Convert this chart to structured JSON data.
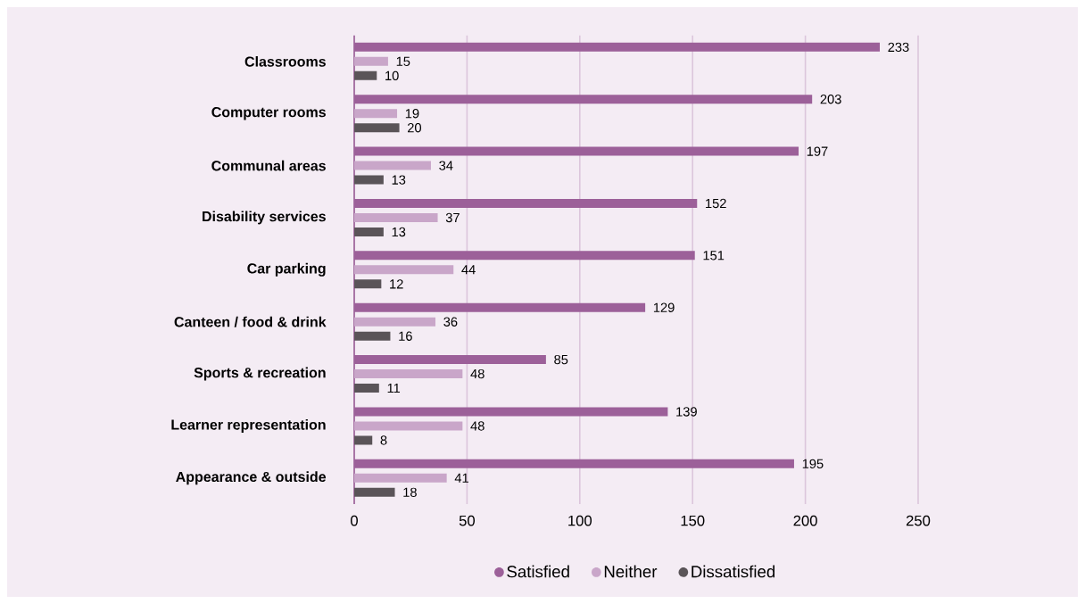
{
  "chart_data": {
    "type": "bar",
    "orientation": "horizontal",
    "categories": [
      "Classrooms",
      "Computer rooms",
      "Communal areas",
      "Disability services",
      "Car parking",
      "Canteen / food & drink",
      "Sports & recreation",
      "Learner representation",
      "Appearance & outside"
    ],
    "series": [
      {
        "name": "Satisfied",
        "color": "#9c6099",
        "values": [
          233,
          203,
          197,
          152,
          151,
          129,
          85,
          139,
          195
        ]
      },
      {
        "name": "Neither",
        "color": "#c9a6c9",
        "values": [
          15,
          19,
          34,
          37,
          44,
          36,
          48,
          48,
          41
        ]
      },
      {
        "name": "Dissatisfied",
        "color": "#5a5458",
        "values": [
          10,
          20,
          13,
          13,
          12,
          16,
          11,
          8,
          18
        ]
      }
    ],
    "xlim": [
      0,
      250
    ],
    "xticks": [
      0,
      50,
      100,
      150,
      200,
      250
    ],
    "grid": "x",
    "legend": "bottom",
    "data_labels": true
  }
}
